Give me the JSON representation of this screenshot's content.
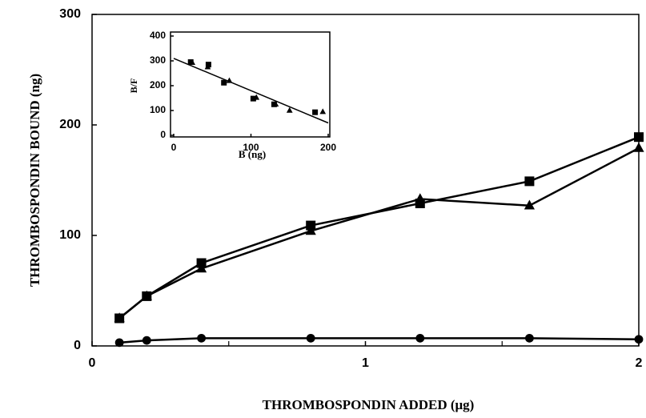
{
  "chart_data": [
    {
      "type": "line",
      "ylabel": "THROMBOSPONDIN BOUND (ng)",
      "xlabel": "THROMBOSPONDIN ADDED (μg)",
      "x": [
        0.1,
        0.2,
        0.4,
        0.8,
        1.2,
        1.6,
        2.0
      ],
      "series": [
        {
          "marker": "square",
          "line": true,
          "color": "#000",
          "values": [
            25,
            45,
            75,
            109,
            129,
            149,
            189
          ]
        },
        {
          "marker": "triangle",
          "line": true,
          "color": "#000",
          "values": [
            25,
            45,
            70,
            104,
            133,
            127,
            179
          ]
        },
        {
          "marker": "circle",
          "line": true,
          "color": "#000",
          "values": [
            3,
            5,
            7,
            7,
            7,
            7,
            6
          ]
        }
      ],
      "xlim": [
        0,
        2
      ],
      "xticks": [
        0,
        1,
        2
      ],
      "xminorticks": [
        0.5,
        1.5
      ],
      "ylim": [
        0,
        300
      ],
      "yticks": [
        0,
        100,
        200,
        300
      ]
    },
    {
      "type": "scatter",
      "ylabel": "B/F",
      "xlabel": "B (ng)",
      "series": [
        {
          "marker": "square",
          "line": false,
          "color": "#000",
          "x": [
            22,
            45,
            65,
            103,
            130,
            183
          ],
          "values": [
            295,
            285,
            212,
            148,
            125,
            93
          ]
        },
        {
          "marker": "triangle",
          "line": false,
          "color": "#000",
          "x": [
            24,
            44,
            72,
            107,
            132,
            150,
            193
          ],
          "values": [
            293,
            275,
            220,
            152,
            125,
            100,
            95
          ]
        },
        {
          "marker": "none",
          "line": true,
          "color": "#000",
          "x": [
            0,
            200
          ],
          "values": [
            310,
            50
          ]
        }
      ],
      "xlim": [
        0,
        200
      ],
      "xticks": [
        0,
        100,
        200
      ],
      "ylim": [
        0,
        400
      ],
      "yticks": [
        0,
        100,
        200,
        300,
        400
      ]
    }
  ]
}
